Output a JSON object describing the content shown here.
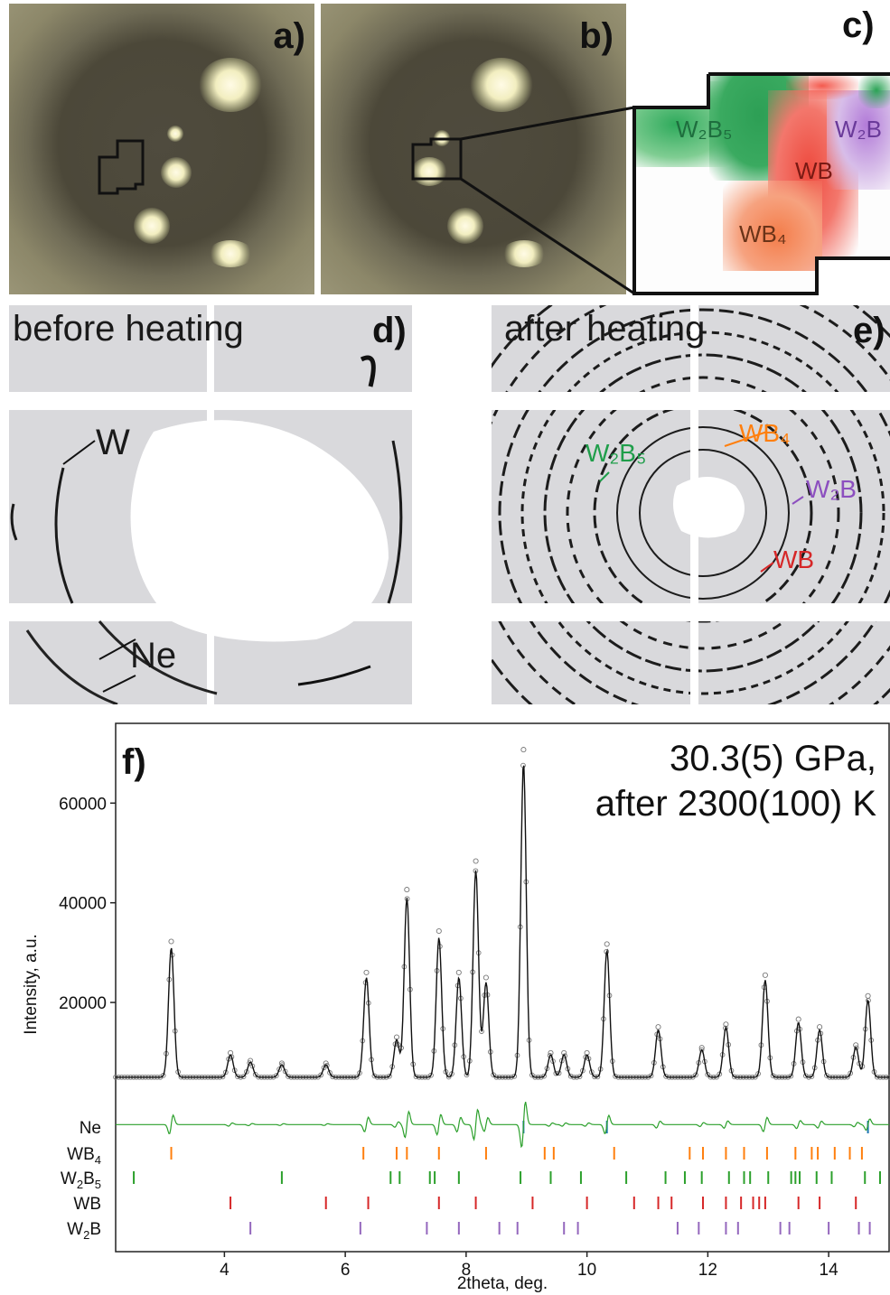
{
  "panels": {
    "a": "a)",
    "b": "b)",
    "c": "c)",
    "d": "d)",
    "e": "e)",
    "f": "f)"
  },
  "map_labels": {
    "w2b5": "W₂B₅",
    "wb": "WB",
    "wb4": "WB₄",
    "w2b": "W₂B"
  },
  "diffraction": {
    "before_title": "before heating",
    "after_title": "after heating",
    "before_labels": {
      "w": "W",
      "ne": "Ne"
    },
    "after_labels": {
      "w2b5": "W₂B₅",
      "wb4": "WB₄",
      "w2b": "W₂B",
      "wb": "WB"
    }
  },
  "colors": {
    "w2b5": "#1f9e4a",
    "wb": "#d62728",
    "wb4": "#ff7f0e",
    "w2b": "#8c4fbf",
    "ne": "#1f77b4",
    "fit": "#111111",
    "diff": "#2ca02c"
  },
  "chart_data": {
    "type": "line",
    "annotation_line1": "30.3(5) GPa,",
    "annotation_line2": "after 2300(100) K",
    "xlabel": "2theta, deg.",
    "ylabel": "Intensity, a.u.",
    "xlim": [
      2.2,
      15.0
    ],
    "ylim": [
      -30000,
      76000
    ],
    "xticks": [
      4,
      6,
      8,
      10,
      12,
      14
    ],
    "yticks": [
      20000,
      40000,
      60000
    ],
    "baseline": 5000,
    "peaks": [
      {
        "x": 3.12,
        "h": 26000
      },
      {
        "x": 4.1,
        "h": 4500
      },
      {
        "x": 4.43,
        "h": 3000
      },
      {
        "x": 4.95,
        "h": 2500
      },
      {
        "x": 5.68,
        "h": 2500
      },
      {
        "x": 6.35,
        "h": 20000
      },
      {
        "x": 6.85,
        "h": 7500
      },
      {
        "x": 7.02,
        "h": 36000
      },
      {
        "x": 7.55,
        "h": 28000
      },
      {
        "x": 7.88,
        "h": 20000
      },
      {
        "x": 8.16,
        "h": 41500
      },
      {
        "x": 8.33,
        "h": 19000
      },
      {
        "x": 8.95,
        "h": 63000
      },
      {
        "x": 9.4,
        "h": 4500
      },
      {
        "x": 9.62,
        "h": 4500
      },
      {
        "x": 10.0,
        "h": 4500
      },
      {
        "x": 10.33,
        "h": 25500
      },
      {
        "x": 11.18,
        "h": 9500
      },
      {
        "x": 11.9,
        "h": 5500
      },
      {
        "x": 12.3,
        "h": 10000
      },
      {
        "x": 12.95,
        "h": 19500
      },
      {
        "x": 13.5,
        "h": 11000
      },
      {
        "x": 13.85,
        "h": 9500
      },
      {
        "x": 14.45,
        "h": 6000
      },
      {
        "x": 14.65,
        "h": 15500
      }
    ],
    "difference_offset": -4500,
    "phase_ticks": [
      {
        "name": "Ne",
        "color": "#1f77b4",
        "x": [
          8.95,
          10.33,
          14.65
        ]
      },
      {
        "name": "WB4",
        "label_main": "WB",
        "label_sub": "4",
        "color": "#ff7f0e",
        "x": [
          3.12,
          6.3,
          6.85,
          7.02,
          7.55,
          8.33,
          9.3,
          9.45,
          10.45,
          11.7,
          11.92,
          12.3,
          12.6,
          12.98,
          13.45,
          13.72,
          13.82,
          14.1,
          14.35,
          14.55
        ]
      },
      {
        "name": "W2B5",
        "label_main": "W",
        "label_sub1": "2",
        "label_mid": "B",
        "label_sub2": "5",
        "color": "#2ca02c",
        "x": [
          2.5,
          4.95,
          6.75,
          6.9,
          7.4,
          7.48,
          7.88,
          8.9,
          9.4,
          9.9,
          10.65,
          11.3,
          11.62,
          11.9,
          12.35,
          12.6,
          12.7,
          13.0,
          13.38,
          13.45,
          13.52,
          13.8,
          14.05,
          14.6,
          14.85
        ]
      },
      {
        "name": "WB",
        "color": "#d62728",
        "x": [
          4.1,
          5.68,
          6.38,
          7.55,
          8.16,
          9.1,
          10.0,
          10.78,
          11.18,
          11.4,
          11.92,
          12.3,
          12.55,
          12.75,
          12.85,
          12.95,
          13.5,
          13.85,
          14.45
        ]
      },
      {
        "name": "W2B",
        "label_main": "W",
        "label_sub1": "2",
        "label_mid": "B",
        "color": "#9467bd",
        "x": [
          4.43,
          6.25,
          7.35,
          7.88,
          8.55,
          8.85,
          9.62,
          9.85,
          11.5,
          11.85,
          12.3,
          12.5,
          13.2,
          13.35,
          14.0,
          14.5,
          14.68
        ]
      }
    ]
  }
}
